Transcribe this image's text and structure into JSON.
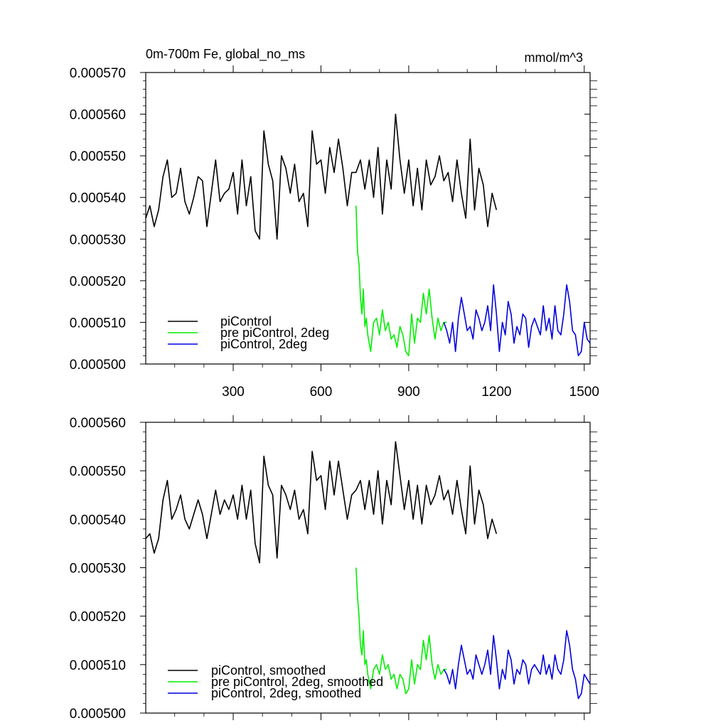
{
  "page": {
    "title_left": "0m-700m Fe, global_no_ms",
    "title_right": "mmol/m^3"
  },
  "colors": {
    "piControl": "#000000",
    "pre_2deg": "#00ee00",
    "pi_2deg": "#0000dd"
  },
  "chart_data": [
    {
      "type": "line",
      "name": "raw",
      "xlim": [
        1,
        1520
      ],
      "ylim": [
        0.0005,
        0.00057
      ],
      "x_ticks": [
        300,
        600,
        900,
        1200,
        1500
      ],
      "x_tick_labels": [
        "300",
        "600",
        "900",
        "1200",
        "1500"
      ],
      "y_ticks": [
        0.0005,
        0.00051,
        0.00052,
        0.00053,
        0.00054,
        0.00055,
        0.00056,
        0.00057
      ],
      "y_tick_labels": [
        "0.000500",
        "0.000510",
        "0.000520",
        "0.000530",
        "0.000540",
        "0.000550",
        "0.000560",
        "0.000570"
      ],
      "legend_position": "bottom-left",
      "series": [
        {
          "name": "piControl",
          "color_key": "piControl",
          "x": [
            1,
            15,
            30,
            45,
            60,
            75,
            90,
            105,
            120,
            135,
            150,
            165,
            180,
            195,
            210,
            225,
            240,
            255,
            270,
            285,
            300,
            315,
            330,
            345,
            360,
            375,
            390,
            405,
            420,
            435,
            450,
            465,
            480,
            495,
            510,
            525,
            540,
            555,
            570,
            585,
            600,
            615,
            630,
            645,
            660,
            675,
            690,
            705,
            720,
            735,
            750,
            765,
            780,
            795,
            810,
            825,
            840,
            855,
            870,
            885,
            900,
            915,
            930,
            945,
            960,
            975,
            990,
            1005,
            1020,
            1035,
            1050,
            1065,
            1080,
            1095,
            1110,
            1125,
            1140,
            1155,
            1170,
            1185,
            1200
          ],
          "y": [
            0.000535,
            0.000538,
            0.000533,
            0.000537,
            0.000545,
            0.000549,
            0.00054,
            0.000541,
            0.000547,
            0.000539,
            0.000536,
            0.00054,
            0.000545,
            0.000544,
            0.000533,
            0.000541,
            0.000549,
            0.000539,
            0.000541,
            0.000542,
            0.000546,
            0.000536,
            0.000549,
            0.000538,
            0.000545,
            0.000532,
            0.00053,
            0.000556,
            0.000548,
            0.000544,
            0.00053,
            0.00055,
            0.000547,
            0.000541,
            0.000548,
            0.000539,
            0.000541,
            0.000533,
            0.000556,
            0.000548,
            0.000549,
            0.000541,
            0.000552,
            0.000546,
            0.000554,
            0.000547,
            0.000538,
            0.000546,
            0.000546,
            0.000549,
            0.000542,
            0.000549,
            0.00054,
            0.000552,
            0.000536,
            0.000549,
            0.000542,
            0.00056,
            0.000549,
            0.000541,
            0.000549,
            0.000538,
            0.000547,
            0.000537,
            0.000549,
            0.000543,
            0.000545,
            0.00055,
            0.000544,
            0.000546,
            0.000539,
            0.000549,
            0.000541,
            0.000535,
            0.000554,
            0.000537,
            0.000547,
            0.000543,
            0.000533,
            0.000541,
            0.000537
          ]
        },
        {
          "name": "pre piControl, 2deg",
          "color_key": "pre_2deg",
          "x": [
            720,
            725,
            730,
            735,
            740,
            745,
            750,
            755,
            760,
            770,
            780,
            790,
            800,
            810,
            820,
            830,
            840,
            850,
            860,
            870,
            880,
            890,
            900,
            910,
            920,
            930,
            940,
            950,
            960,
            970,
            980,
            990,
            1000,
            1010,
            1020,
            1030
          ],
          "y": [
            0.000538,
            0.000527,
            0.000524,
            0.000516,
            0.000512,
            0.000518,
            0.000509,
            0.000511,
            0.000507,
            0.000503,
            0.00051,
            0.000511,
            0.000507,
            0.000513,
            0.000508,
            0.00051,
            0.000506,
            0.000507,
            0.000504,
            0.000509,
            0.000507,
            0.000503,
            0.000502,
            0.000512,
            0.000505,
            0.000511,
            0.00051,
            0.000517,
            0.000512,
            0.000518,
            0.000511,
            0.000506,
            0.000511,
            0.000508,
            0.00051,
            0.00051
          ]
        },
        {
          "name": "piControl, 2deg",
          "color_key": "pi_2deg",
          "x": [
            1020,
            1030,
            1040,
            1050,
            1060,
            1070,
            1080,
            1090,
            1100,
            1110,
            1120,
            1130,
            1140,
            1150,
            1160,
            1170,
            1180,
            1190,
            1200,
            1210,
            1220,
            1230,
            1240,
            1250,
            1260,
            1270,
            1280,
            1290,
            1300,
            1310,
            1320,
            1330,
            1340,
            1350,
            1360,
            1370,
            1380,
            1390,
            1400,
            1410,
            1420,
            1430,
            1440,
            1450,
            1460,
            1470,
            1480,
            1490,
            1500,
            1510,
            1520
          ],
          "y": [
            0.00051,
            0.000508,
            0.000505,
            0.00051,
            0.000503,
            0.000511,
            0.000516,
            0.000512,
            0.000508,
            0.000509,
            0.000506,
            0.000513,
            0.000511,
            0.000508,
            0.00051,
            0.000514,
            0.000508,
            0.000519,
            0.000512,
            0.000503,
            0.00051,
            0.000507,
            0.000515,
            0.000512,
            0.000505,
            0.000509,
            0.000507,
            0.000512,
            0.000511,
            0.000504,
            0.000509,
            0.000511,
            0.000509,
            0.000507,
            0.000514,
            0.000508,
            0.000511,
            0.000506,
            0.000514,
            0.000508,
            0.000507,
            0.000512,
            0.000519,
            0.000515,
            0.000508,
            0.000507,
            0.000502,
            0.000503,
            0.00051,
            0.000506,
            0.000505
          ]
        }
      ]
    },
    {
      "type": "line",
      "name": "smoothed",
      "xlim": [
        1,
        1520
      ],
      "ylim": [
        0.0005,
        0.00056
      ],
      "x_ticks": [
        300,
        600,
        900,
        1200,
        1500
      ],
      "x_tick_labels": [
        "",
        "",
        "",
        "",
        ""
      ],
      "y_ticks": [
        0.0005,
        0.00051,
        0.00052,
        0.00053,
        0.00054,
        0.00055,
        0.00056
      ],
      "y_tick_labels": [
        "0.000500",
        "0.000510",
        "0.000520",
        "0.000530",
        "0.000540",
        "0.000550",
        "0.000560"
      ],
      "legend_position": "bottom-left",
      "series": [
        {
          "name": "piControl, smoothed",
          "color_key": "piControl",
          "x": [
            1,
            15,
            30,
            45,
            60,
            75,
            90,
            105,
            120,
            135,
            150,
            165,
            180,
            195,
            210,
            225,
            240,
            255,
            270,
            285,
            300,
            315,
            330,
            345,
            360,
            375,
            390,
            405,
            420,
            435,
            450,
            465,
            480,
            495,
            510,
            525,
            540,
            555,
            570,
            585,
            600,
            615,
            630,
            645,
            660,
            675,
            690,
            705,
            720,
            735,
            750,
            765,
            780,
            795,
            810,
            825,
            840,
            855,
            870,
            885,
            900,
            915,
            930,
            945,
            960,
            975,
            990,
            1005,
            1020,
            1035,
            1050,
            1065,
            1080,
            1095,
            1110,
            1125,
            1140,
            1155,
            1170,
            1185,
            1200
          ],
          "y": [
            0.000536,
            0.000537,
            0.000533,
            0.000536,
            0.000544,
            0.000548,
            0.00054,
            0.000542,
            0.000545,
            0.00054,
            0.000538,
            0.000541,
            0.000544,
            0.000541,
            0.000536,
            0.000541,
            0.000546,
            0.000541,
            0.000544,
            0.000542,
            0.000545,
            0.00054,
            0.000547,
            0.00054,
            0.000546,
            0.000535,
            0.000531,
            0.000553,
            0.000547,
            0.000545,
            0.000532,
            0.000547,
            0.000545,
            0.000542,
            0.000546,
            0.00054,
            0.000542,
            0.000537,
            0.000554,
            0.000548,
            0.000549,
            0.000542,
            0.000552,
            0.000545,
            0.000552,
            0.000546,
            0.00054,
            0.000545,
            0.000546,
            0.000548,
            0.000542,
            0.000548,
            0.000541,
            0.00055,
            0.000539,
            0.000548,
            0.000543,
            0.000556,
            0.000549,
            0.000542,
            0.000548,
            0.00054,
            0.000547,
            0.000539,
            0.000547,
            0.000543,
            0.000545,
            0.000549,
            0.000544,
            0.000546,
            0.000541,
            0.000548,
            0.000542,
            0.000537,
            0.000551,
            0.000539,
            0.000546,
            0.000543,
            0.000536,
            0.00054,
            0.000537
          ]
        },
        {
          "name": "pre piControl, 2deg, smoothed",
          "color_key": "pre_2deg",
          "x": [
            720,
            725,
            730,
            735,
            740,
            745,
            750,
            755,
            760,
            770,
            780,
            790,
            800,
            810,
            820,
            830,
            840,
            850,
            860,
            870,
            880,
            890,
            900,
            910,
            920,
            930,
            940,
            950,
            960,
            970,
            980,
            990,
            1000,
            1010,
            1020,
            1030
          ],
          "y": [
            0.00053,
            0.000524,
            0.00052,
            0.000514,
            0.000512,
            0.000517,
            0.00051,
            0.000511,
            0.000508,
            0.000505,
            0.000509,
            0.00051,
            0.000508,
            0.000512,
            0.000509,
            0.00051,
            0.000507,
            0.000508,
            0.000505,
            0.000508,
            0.000507,
            0.000504,
            0.000505,
            0.000511,
            0.000506,
            0.00051,
            0.000509,
            0.000515,
            0.000511,
            0.000516,
            0.00051,
            0.000507,
            0.00051,
            0.000508,
            0.000509,
            0.000509
          ]
        },
        {
          "name": "piControl, 2deg, smoothed",
          "color_key": "pi_2deg",
          "x": [
            1020,
            1030,
            1040,
            1050,
            1060,
            1070,
            1080,
            1090,
            1100,
            1110,
            1120,
            1130,
            1140,
            1150,
            1160,
            1170,
            1180,
            1190,
            1200,
            1210,
            1220,
            1230,
            1240,
            1250,
            1260,
            1270,
            1280,
            1290,
            1300,
            1310,
            1320,
            1330,
            1340,
            1350,
            1360,
            1370,
            1380,
            1390,
            1400,
            1410,
            1420,
            1430,
            1440,
            1450,
            1460,
            1470,
            1480,
            1490,
            1500,
            1510,
            1520
          ],
          "y": [
            0.000509,
            0.000508,
            0.000506,
            0.000509,
            0.000505,
            0.00051,
            0.000514,
            0.000511,
            0.000508,
            0.000509,
            0.000507,
            0.000512,
            0.00051,
            0.000508,
            0.00051,
            0.000513,
            0.000508,
            0.000516,
            0.000511,
            0.000505,
            0.000509,
            0.000507,
            0.000513,
            0.000511,
            0.000506,
            0.000509,
            0.000508,
            0.000511,
            0.00051,
            0.000506,
            0.000509,
            0.00051,
            0.000509,
            0.000508,
            0.000512,
            0.000508,
            0.00051,
            0.000507,
            0.000512,
            0.000509,
            0.000508,
            0.000511,
            0.000517,
            0.000514,
            0.000509,
            0.000507,
            0.000503,
            0.000504,
            0.000508,
            0.000507,
            0.000506
          ]
        }
      ]
    }
  ]
}
